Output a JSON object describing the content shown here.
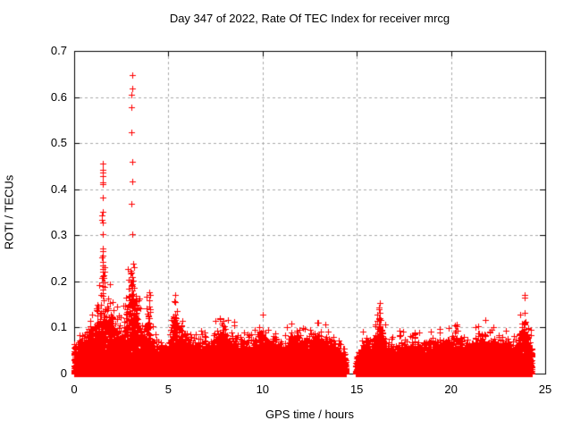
{
  "chart_data": {
    "type": "scatter",
    "title": "Day 347 of 2022, Rate Of TEC Index for receiver mrcg",
    "xlabel": "GPS time / hours",
    "ylabel": "ROTI / TECUs",
    "xlim": [
      0,
      25
    ],
    "ylim": [
      0,
      0.7
    ],
    "xticks": [
      "0",
      "5",
      "10",
      "15",
      "20",
      "25"
    ],
    "yticks": [
      "0",
      "0.1",
      "0.2",
      "0.3",
      "0.4",
      "0.5",
      "0.6",
      "0.7"
    ],
    "grid": {
      "visible": true,
      "style": "dashed",
      "color": "#aaaaaa"
    },
    "marker": {
      "shape": "plus",
      "color": "#ff0000",
      "size": 7
    },
    "data_x_range": [
      0,
      24.3
    ],
    "gaps": [
      [
        14.43,
        14.95
      ]
    ],
    "seed": 1347,
    "band_step": 0.01,
    "band_points_per_step": 8,
    "band_power": 2.6,
    "band_envelope": [
      [
        0.0,
        0.05
      ],
      [
        0.3,
        0.055
      ],
      [
        0.6,
        0.07
      ],
      [
        0.9,
        0.085
      ],
      [
        1.1,
        0.09
      ],
      [
        1.3,
        0.1
      ],
      [
        1.5,
        0.15
      ],
      [
        1.7,
        0.12
      ],
      [
        1.9,
        0.13
      ],
      [
        2.1,
        0.1
      ],
      [
        2.3,
        0.09
      ],
      [
        2.5,
        0.075
      ],
      [
        2.7,
        0.1
      ],
      [
        2.9,
        0.15
      ],
      [
        3.05,
        0.21
      ],
      [
        3.2,
        0.17
      ],
      [
        3.35,
        0.13
      ],
      [
        3.5,
        0.1
      ],
      [
        3.7,
        0.08
      ],
      [
        3.95,
        0.12
      ],
      [
        4.1,
        0.07
      ],
      [
        4.3,
        0.06
      ],
      [
        4.6,
        0.05
      ],
      [
        5.0,
        0.06
      ],
      [
        5.35,
        0.12
      ],
      [
        5.6,
        0.07
      ],
      [
        5.95,
        0.075
      ],
      [
        6.3,
        0.05
      ],
      [
        6.6,
        0.065
      ],
      [
        6.9,
        0.06
      ],
      [
        7.2,
        0.055
      ],
      [
        7.5,
        0.07
      ],
      [
        7.9,
        0.09
      ],
      [
        8.2,
        0.065
      ],
      [
        8.5,
        0.07
      ],
      [
        8.8,
        0.055
      ],
      [
        9.2,
        0.06
      ],
      [
        9.5,
        0.065
      ],
      [
        9.8,
        0.07
      ],
      [
        10.0,
        0.08
      ],
      [
        10.3,
        0.06
      ],
      [
        10.7,
        0.075
      ],
      [
        11.0,
        0.06
      ],
      [
        11.3,
        0.065
      ],
      [
        11.6,
        0.07
      ],
      [
        11.85,
        0.085
      ],
      [
        12.1,
        0.07
      ],
      [
        12.4,
        0.065
      ],
      [
        12.7,
        0.075
      ],
      [
        13.0,
        0.08
      ],
      [
        13.3,
        0.075
      ],
      [
        13.6,
        0.06
      ],
      [
        13.9,
        0.055
      ],
      [
        14.2,
        0.04
      ],
      [
        14.43,
        0.03
      ],
      [
        14.95,
        0.035
      ],
      [
        15.2,
        0.05
      ],
      [
        15.5,
        0.065
      ],
      [
        15.8,
        0.055
      ],
      [
        16.0,
        0.07
      ],
      [
        16.2,
        0.11
      ],
      [
        16.4,
        0.07
      ],
      [
        16.7,
        0.055
      ],
      [
        17.0,
        0.05
      ],
      [
        17.4,
        0.06
      ],
      [
        17.8,
        0.055
      ],
      [
        18.2,
        0.065
      ],
      [
        18.6,
        0.06
      ],
      [
        19.0,
        0.055
      ],
      [
        19.3,
        0.06
      ],
      [
        19.6,
        0.07
      ],
      [
        19.9,
        0.065
      ],
      [
        20.3,
        0.08
      ],
      [
        20.6,
        0.06
      ],
      [
        21.0,
        0.055
      ],
      [
        21.4,
        0.085
      ],
      [
        21.7,
        0.08
      ],
      [
        22.0,
        0.06
      ],
      [
        22.4,
        0.07
      ],
      [
        22.7,
        0.07
      ],
      [
        23.0,
        0.06
      ],
      [
        23.3,
        0.055
      ],
      [
        23.6,
        0.07
      ],
      [
        23.85,
        0.1
      ],
      [
        24.0,
        0.09
      ],
      [
        24.3,
        0.06
      ]
    ],
    "spikes": [
      {
        "x": 0.27,
        "values": [
          0.084
        ]
      },
      {
        "x": 1.51,
        "values": [
          0.455,
          0.446,
          0.437,
          0.428,
          0.418,
          0.41,
          0.378,
          0.352,
          0.344,
          0.336,
          0.328,
          0.3,
          0.273,
          0.265,
          0.258,
          0.25,
          0.242,
          0.235,
          0.228,
          0.22,
          0.212,
          0.205,
          0.198,
          0.19,
          0.183,
          0.176,
          0.17
        ]
      },
      {
        "x": 1.6,
        "values": [
          0.23,
          0.222,
          0.214,
          0.206,
          0.198,
          0.19
        ]
      },
      {
        "x": 1.75,
        "values": [
          0.145
        ]
      },
      {
        "x": 1.95,
        "values": [
          0.13,
          0.124,
          0.118,
          0.112,
          0.106
        ]
      },
      {
        "x": 2.3,
        "values": [
          0.145,
          0.118
        ]
      },
      {
        "x": 3.07,
        "values": [
          0.644,
          0.624,
          0.604,
          0.581,
          0.522,
          0.461,
          0.42,
          0.365,
          0.303
        ]
      },
      {
        "x": 3.1,
        "values": [
          0.21,
          0.202,
          0.195,
          0.188,
          0.181,
          0.174,
          0.168,
          0.162,
          0.156,
          0.15,
          0.144,
          0.138,
          0.132,
          0.126,
          0.12,
          0.114
        ]
      },
      {
        "x": 3.3,
        "values": [
          0.17,
          0.16,
          0.15,
          0.14,
          0.13,
          0.12
        ]
      },
      {
        "x": 3.96,
        "values": [
          0.175,
          0.145,
          0.12
        ]
      },
      {
        "x": 4.05,
        "values": [
          0.171
        ]
      },
      {
        "x": 5.35,
        "values": [
          0.171,
          0.157,
          0.122,
          0.115,
          0.11
        ]
      },
      {
        "x": 7.9,
        "values": [
          0.116,
          0.105,
          0.095,
          0.087
        ]
      },
      {
        "x": 10.0,
        "values": [
          0.093,
          0.085
        ]
      },
      {
        "x": 11.85,
        "values": [
          0.089
        ]
      },
      {
        "x": 16.2,
        "values": [
          0.151,
          0.145,
          0.14,
          0.133,
          0.122,
          0.107,
          0.098,
          0.09
        ]
      },
      {
        "x": 20.3,
        "values": [
          0.106
        ]
      },
      {
        "x": 21.5,
        "values": [
          0.087
        ]
      },
      {
        "x": 23.9,
        "values": [
          0.17,
          0.165,
          0.132,
          0.112,
          0.091,
          0.085
        ]
      }
    ]
  }
}
